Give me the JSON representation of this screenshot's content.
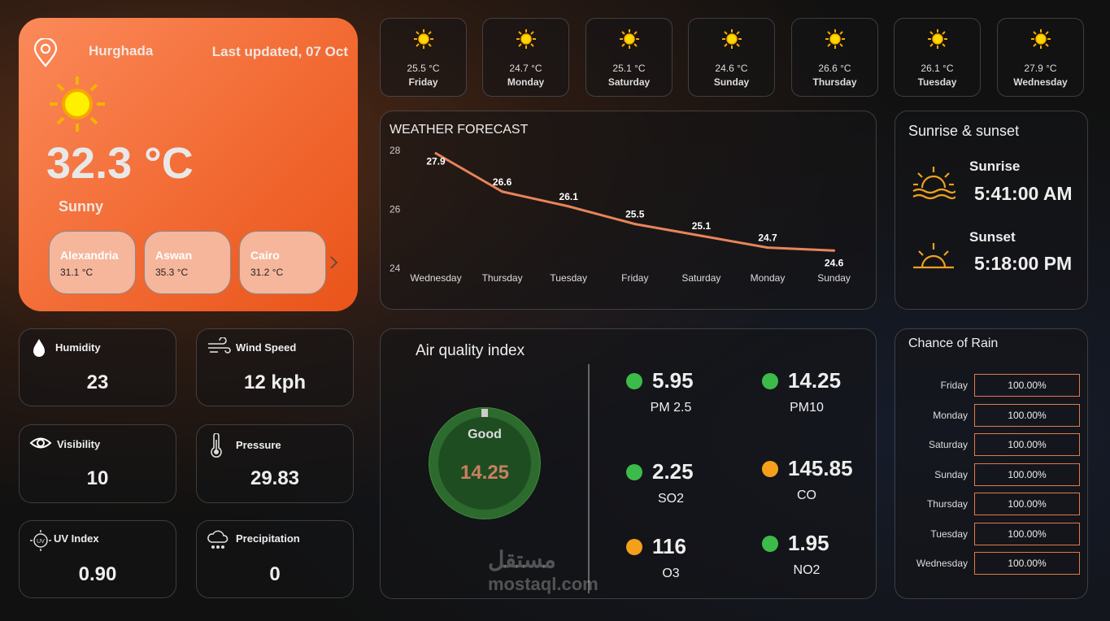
{
  "current": {
    "city": "Hurghada",
    "last_updated": "Last updated, 07 Oct",
    "temperature": "32.3 °C",
    "condition": "Sunny",
    "icon": "sun-icon"
  },
  "cities": [
    {
      "name": "Alexandria",
      "temp": "31.1 °C"
    },
    {
      "name": "Aswan",
      "temp": "35.3 °C"
    },
    {
      "name": "Cairo",
      "temp": "31.2 °C"
    }
  ],
  "stats": {
    "humidity": {
      "label": "Humidity",
      "value": "23"
    },
    "wind": {
      "label": "Wind Speed",
      "value": "12 kph"
    },
    "visibility": {
      "label": "Visibility",
      "value": "10"
    },
    "pressure": {
      "label": "Pressure",
      "value": "29.83"
    },
    "uv": {
      "label": "UV Index",
      "value": "0.90"
    },
    "precip": {
      "label": "Precipitation",
      "value": "0"
    }
  },
  "days": [
    {
      "temp": "25.5 °C",
      "day": "Friday"
    },
    {
      "temp": "24.7 °C",
      "day": "Monday"
    },
    {
      "temp": "25.1 °C",
      "day": "Saturday"
    },
    {
      "temp": "24.6 °C",
      "day": "Sunday"
    },
    {
      "temp": "26.6 °C",
      "day": "Thursday"
    },
    {
      "temp": "26.1 °C",
      "day": "Tuesday"
    },
    {
      "temp": "27.9 °C",
      "day": "Wednesday"
    }
  ],
  "chart_data": {
    "type": "line",
    "title": "WEATHER FORECAST",
    "categories": [
      "Wednesday",
      "Thursday",
      "Tuesday",
      "Friday",
      "Saturday",
      "Monday",
      "Sunday"
    ],
    "values": [
      27.9,
      26.6,
      26.1,
      25.5,
      25.1,
      24.7,
      24.6
    ],
    "yticks": [
      "28",
      "26",
      "24"
    ],
    "ylim": [
      24,
      28
    ],
    "color": "#e8845a"
  },
  "sun": {
    "title": "Sunrise & sunset",
    "sunrise_label": "Sunrise",
    "sunrise": "5:41:00 AM",
    "sunset_label": "Sunset",
    "sunset": "5:18:00 PM"
  },
  "aqi": {
    "title": "Air quality index",
    "status": "Good",
    "value": "14.25",
    "items": [
      {
        "value": "5.95",
        "label": "PM 2.5",
        "color": "#3dbb4a"
      },
      {
        "value": "14.25",
        "label": "PM10",
        "color": "#3dbb4a"
      },
      {
        "value": "2.25",
        "label": "SO2",
        "color": "#3dbb4a"
      },
      {
        "value": "145.85",
        "label": "CO",
        "color": "#f5a01a"
      },
      {
        "value": "116",
        "label": "O3",
        "color": "#f5a01a"
      },
      {
        "value": "1.95",
        "label": "NO2",
        "color": "#3dbb4a"
      }
    ]
  },
  "rain": {
    "title": "Chance of Rain",
    "rows": [
      {
        "day": "Friday",
        "value": "100.00%"
      },
      {
        "day": "Monday",
        "value": "100.00%"
      },
      {
        "day": "Saturday",
        "value": "100.00%"
      },
      {
        "day": "Sunday",
        "value": "100.00%"
      },
      {
        "day": "Thursday",
        "value": "100.00%"
      },
      {
        "day": "Tuesday",
        "value": "100.00%"
      },
      {
        "day": "Wednesday",
        "value": "100.00%"
      }
    ]
  },
  "watermark": "مستقل mostaql.com"
}
